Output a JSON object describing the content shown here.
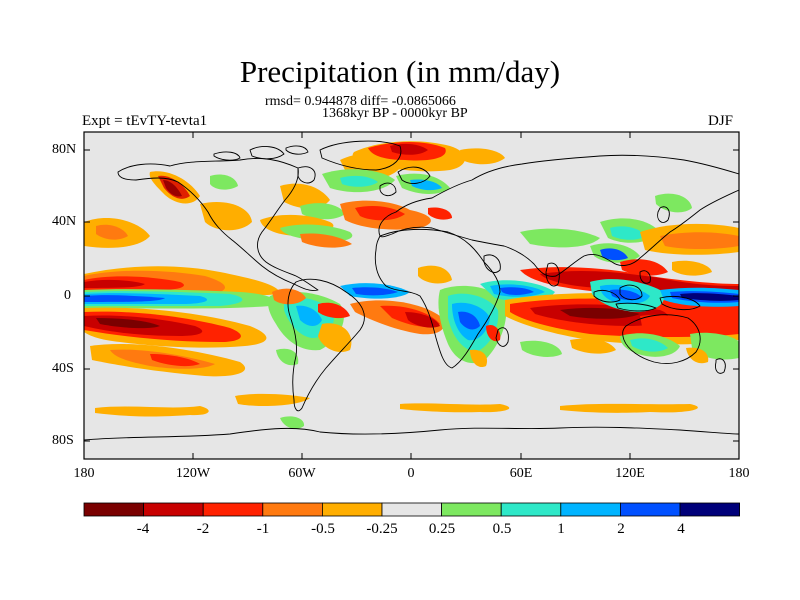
{
  "title": "Precipitation (in mm/day)",
  "stats_line": "rmsd= 0.944878 diff= -0.0865066",
  "period_line": "1368kyr BP - 0000kyr BP",
  "experiment_label": "Expt = tEvTY-tevta1",
  "season_label": "DJF",
  "latitude_labels": [
    "80N",
    "40N",
    "0",
    "40S",
    "80S"
  ],
  "longitude_labels": [
    "180",
    "120W",
    "60W",
    "0",
    "60E",
    "120E",
    "180"
  ],
  "colorbar": {
    "labels": [
      "-4",
      "-2",
      "-1",
      "-0.5",
      "-0.25",
      "0.25",
      "0.5",
      "1",
      "2",
      "4"
    ],
    "colors": [
      "#7a0000",
      "#c80000",
      "#ff2200",
      "#ff7a10",
      "#ffae00",
      "#e6e6e6",
      "#7de860",
      "#2ee8c8",
      "#00b4ff",
      "#0050ff",
      "#00007a"
    ]
  },
  "colors": {
    "ocean_background": "#e6e6e6",
    "coastline": "#000000"
  }
}
